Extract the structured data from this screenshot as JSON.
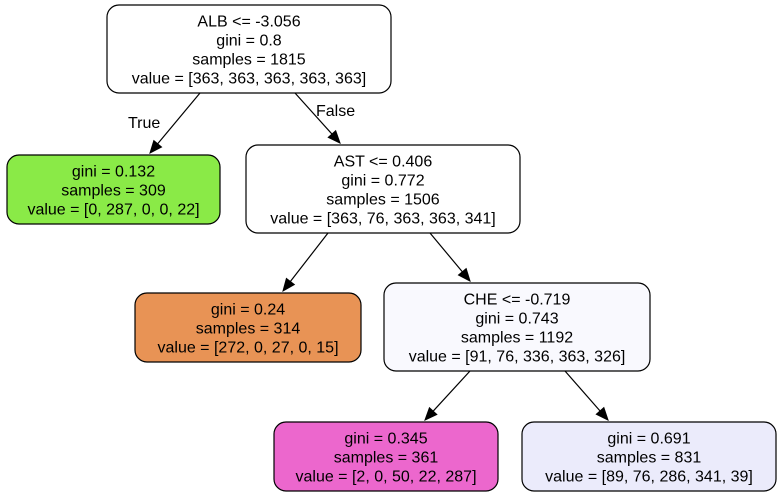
{
  "tree": {
    "nodes": [
      {
        "id": "root",
        "fill": "#ffffff",
        "lines": [
          "ALB <= -3.056",
          "gini = 0.8",
          "samples = 1815",
          "value = [363, 363, 363, 363, 363]"
        ]
      },
      {
        "id": "left-leaf",
        "fill": "#8aea47",
        "lines": [
          "gini = 0.132",
          "samples = 309",
          "value = [0, 287, 0, 0, 22]"
        ]
      },
      {
        "id": "ast-node",
        "fill": "#ffffff",
        "lines": [
          "AST <= 0.406",
          "gini = 0.772",
          "samples = 1506",
          "value = [363, 76, 363, 363, 341]"
        ]
      },
      {
        "id": "orange-leaf",
        "fill": "#e89355",
        "lines": [
          "gini = 0.24",
          "samples = 314",
          "value = [272, 0, 27, 0, 15]"
        ]
      },
      {
        "id": "che-node",
        "fill": "#f9f9fe",
        "lines": [
          "CHE <= -0.719",
          "gini = 0.743",
          "samples = 1192",
          "value = [91, 76, 336, 363, 326]"
        ]
      },
      {
        "id": "pink-leaf",
        "fill": "#ec67cd",
        "lines": [
          "gini = 0.345",
          "samples = 361",
          "value = [2, 0, 50, 22, 287]"
        ]
      },
      {
        "id": "lavender-leaf",
        "fill": "#ebebfb",
        "lines": [
          "gini = 0.691",
          "samples = 831",
          "value = [89, 76, 286, 341, 39]"
        ]
      }
    ],
    "edges": [
      {
        "from": "root",
        "to": "left-leaf",
        "label": "True"
      },
      {
        "from": "root",
        "to": "ast-node",
        "label": "False"
      },
      {
        "from": "ast-node",
        "to": "orange-leaf",
        "label": ""
      },
      {
        "from": "ast-node",
        "to": "che-node",
        "label": ""
      },
      {
        "from": "che-node",
        "to": "pink-leaf",
        "label": ""
      },
      {
        "from": "che-node",
        "to": "lavender-leaf",
        "label": ""
      }
    ]
  }
}
